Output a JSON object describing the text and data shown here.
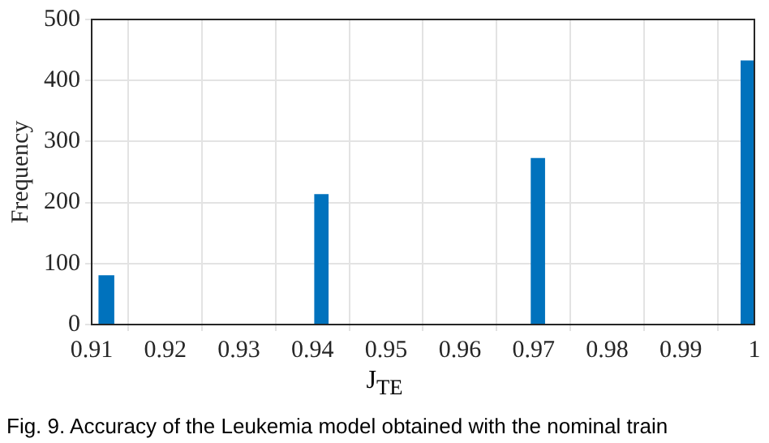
{
  "chart_data": {
    "type": "histogram",
    "xlabel": "J$_{TE}$",
    "ylabel": "Frequency",
    "bins": [
      0.911,
      0.913,
      0.9403,
      0.9421,
      0.9697,
      0.9715,
      0.9982,
      1.0
    ],
    "values": [
      80,
      0,
      213,
      0,
      272,
      0,
      432
    ],
    "color": "#0072bd",
    "xlim": [
      0.91,
      1
    ],
    "xticks": [
      0.91,
      0.92,
      0.93,
      0.94,
      0.95,
      0.96,
      0.97,
      0.98,
      0.99,
      1
    ],
    "ylim": [
      0,
      500
    ],
    "yticks": [
      0,
      100,
      200,
      300,
      400,
      500
    ],
    "grid": true,
    "legend": false,
    "annotations": [
      "Fig. 9. Accuracy of the Leukemia model obtained with the nominal train"
    ]
  }
}
